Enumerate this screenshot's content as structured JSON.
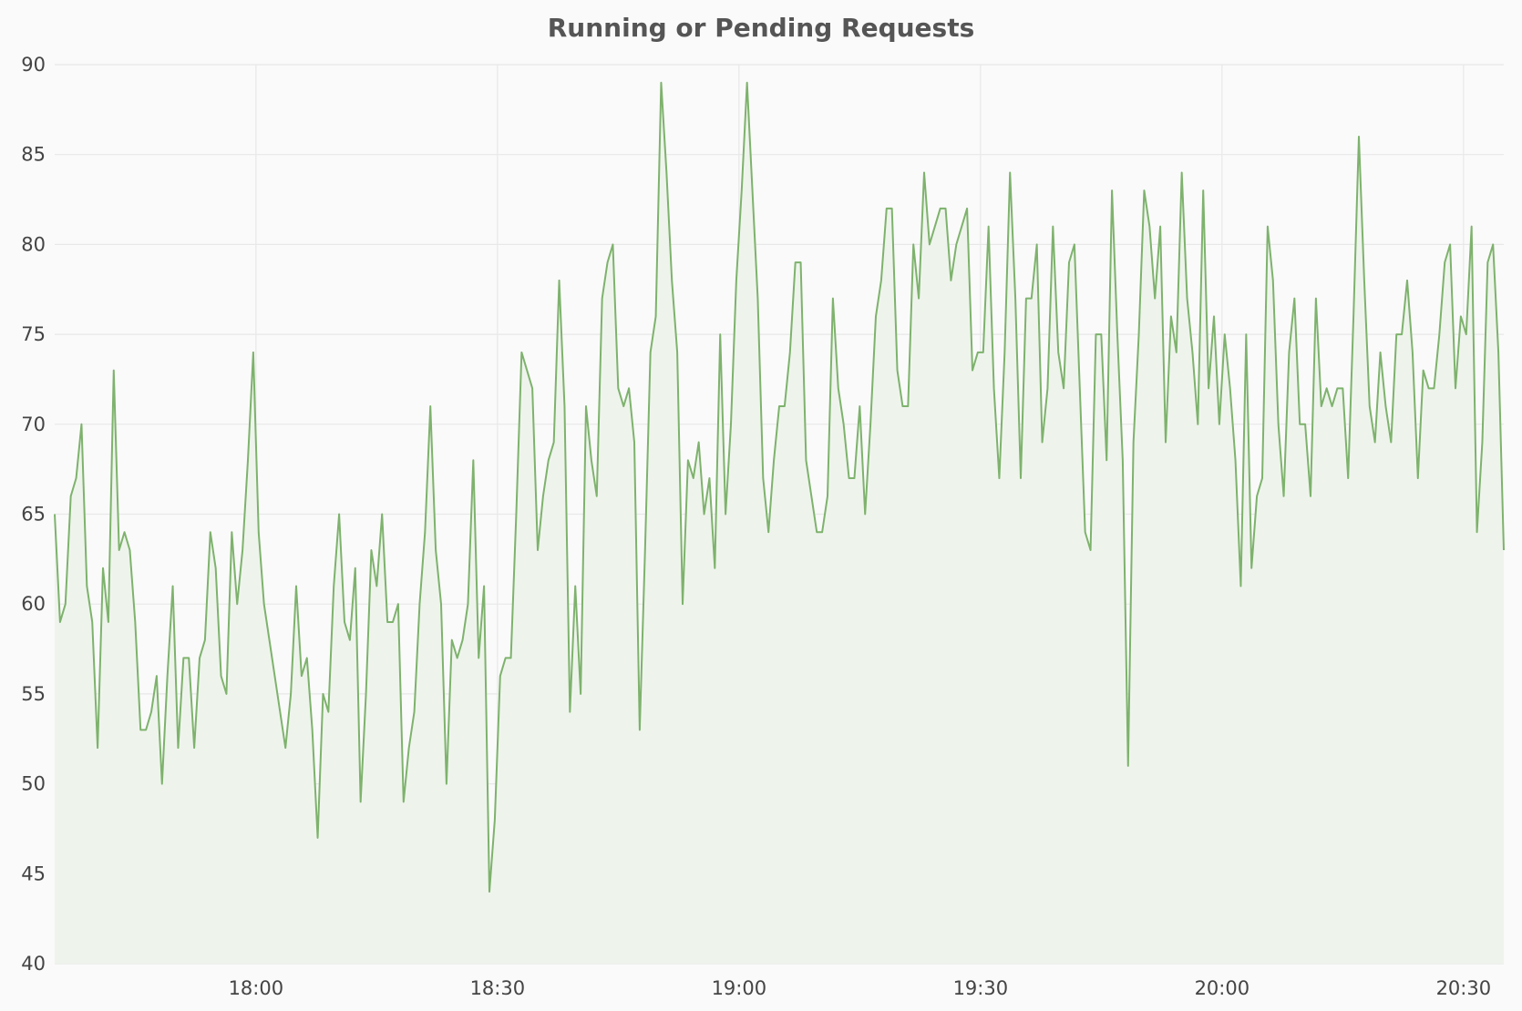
{
  "chart_data": {
    "type": "area",
    "title": "Running or Pending Requests",
    "xlabel": "",
    "ylabel": "",
    "x_start": "17:35",
    "x_end": "20:35",
    "ylim": [
      40,
      90
    ],
    "yticks": [
      40,
      45,
      50,
      55,
      60,
      65,
      70,
      75,
      80,
      85,
      90
    ],
    "xticks": [
      "18:00",
      "18:30",
      "19:00",
      "19:30",
      "20:00",
      "20:30"
    ],
    "grid": true,
    "colors": {
      "line": "#7eb26d",
      "fill": "#eef4ec",
      "grid": "#e8e8e8",
      "background": "#fafafa"
    },
    "series": [
      {
        "values": [
          65,
          59,
          60,
          66,
          67,
          70,
          61,
          59,
          52,
          62,
          59,
          73,
          63,
          64,
          63,
          59,
          53,
          53,
          54,
          56,
          50,
          56,
          61,
          52,
          57,
          57,
          52,
          57,
          58,
          64,
          62,
          56,
          55,
          64,
          60,
          63,
          68,
          74,
          64,
          60,
          58,
          56,
          54,
          52,
          55,
          61,
          56,
          57,
          53,
          47,
          55,
          54,
          61,
          65,
          59,
          58,
          62,
          49,
          55,
          63,
          61,
          65,
          59,
          59,
          60,
          49,
          52,
          54,
          60,
          64,
          71,
          63,
          60,
          50,
          58,
          57,
          58,
          60,
          68,
          57,
          61,
          44,
          48,
          56,
          57,
          57,
          65,
          74,
          73,
          72,
          63,
          66,
          68,
          69,
          78,
          71,
          54,
          61,
          55,
          71,
          68,
          66,
          77,
          79,
          80,
          72,
          71,
          72,
          69,
          53,
          63,
          74,
          76,
          89,
          84,
          78,
          74,
          60,
          68,
          67,
          69,
          65,
          67,
          62,
          75,
          65,
          70,
          78,
          83,
          89,
          83,
          77,
          67,
          64,
          68,
          71,
          71,
          74,
          79,
          79,
          68,
          66,
          64,
          64,
          66,
          77,
          72,
          70,
          67,
          67,
          71,
          65,
          70,
          76,
          78,
          82,
          82,
          73,
          71,
          71,
          80,
          77,
          84,
          80,
          81,
          82,
          82,
          78,
          80,
          81,
          82,
          73,
          74,
          74,
          81,
          72,
          67,
          74,
          84,
          77,
          67,
          77,
          77,
          80,
          69,
          72,
          81,
          74,
          72,
          79,
          80,
          72,
          64,
          63,
          75,
          75,
          68,
          83,
          75,
          68,
          51,
          69,
          75,
          83,
          81,
          77,
          81,
          69,
          76,
          74,
          84,
          77,
          74,
          70,
          83,
          72,
          76,
          70,
          75,
          72,
          68,
          61,
          75,
          62,
          66,
          67,
          81,
          78,
          70,
          66,
          74,
          77,
          70,
          70,
          66,
          77,
          71,
          72,
          71,
          72,
          72,
          67,
          76,
          86,
          78,
          71,
          69,
          74,
          71,
          69,
          75,
          75,
          78,
          74,
          67,
          73,
          72,
          72,
          75,
          79,
          80,
          72,
          76,
          75,
          81,
          64,
          69,
          79,
          80,
          74,
          63
        ]
      }
    ]
  }
}
